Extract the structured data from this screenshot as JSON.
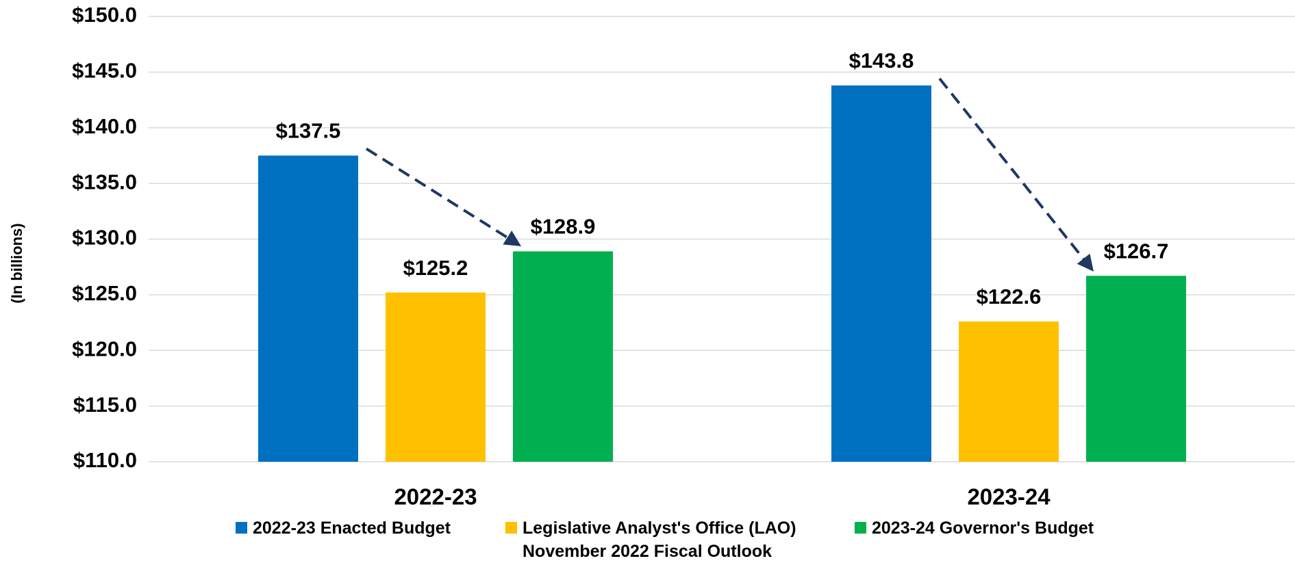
{
  "chart_data": {
    "type": "bar",
    "y_label": "(In billions)",
    "categories": [
      "2022-23",
      "2023-24"
    ],
    "series": [
      {
        "name": "2022-23 Enacted Budget",
        "color": "#0070c0",
        "values": [
          137.5,
          143.8
        ],
        "value_labels": [
          "$137.5",
          "$143.8"
        ]
      },
      {
        "name": "Legislative Analyst's Office (LAO)\nNovember 2022 Fiscal Outlook",
        "color": "#ffc000",
        "values": [
          125.2,
          122.6
        ],
        "value_labels": [
          "$125.2",
          "$122.6"
        ]
      },
      {
        "name": "2023-24 Governor's Budget",
        "color": "#00b050",
        "values": [
          128.9,
          126.7
        ],
        "value_labels": [
          "$128.9",
          "$126.7"
        ]
      }
    ],
    "ylim": [
      110,
      150
    ],
    "yticks": [
      {
        "value": 110,
        "label": "$110.0"
      },
      {
        "value": 115,
        "label": "$115.0"
      },
      {
        "value": 120,
        "label": "$120.0"
      },
      {
        "value": 125,
        "label": "$125.0"
      },
      {
        "value": 130,
        "label": "$130.0"
      },
      {
        "value": 135,
        "label": "$135.0"
      },
      {
        "value": 140,
        "label": "$140.0"
      },
      {
        "value": 145,
        "label": "$145.0"
      },
      {
        "value": 150,
        "label": "$150.0"
      }
    ],
    "grid": true
  }
}
